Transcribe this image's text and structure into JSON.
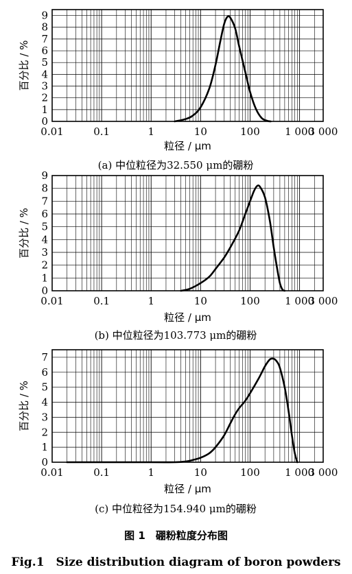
{
  "figure": {
    "caption_cn": "图 1　硼粉粒度分布图",
    "caption_en": "Fig.1　Size distribution diagram of boron powders"
  },
  "chart_data": [
    {
      "type": "line",
      "panel_label": "(a)  中位粒径为32.550 μm的硼粉",
      "xlabel": "粒径 / μm",
      "ylabel": "百分比 / %",
      "xscale": "log",
      "xlim": [
        0.01,
        3000
      ],
      "ylim": [
        0,
        9.5
      ],
      "xticks": [
        0.01,
        0.1,
        1,
        10,
        100,
        1000,
        3000
      ],
      "xtick_labels": [
        "0.01",
        "0.1",
        "1",
        "10",
        "100",
        "1 000",
        "3 000"
      ],
      "yticks": [
        0,
        1,
        2,
        3,
        4,
        5,
        6,
        7,
        8,
        9
      ],
      "grid": true,
      "series": [
        {
          "x": [
            3,
            5,
            7,
            10,
            15,
            20,
            25,
            30,
            35,
            40,
            50,
            60,
            80,
            100,
            130,
            170,
            220,
            260
          ],
          "y": [
            0,
            0.2,
            0.5,
            1.2,
            2.8,
            4.8,
            6.8,
            8.3,
            8.9,
            8.8,
            7.9,
            6.4,
            4.2,
            2.5,
            1.1,
            0.3,
            0.05,
            0
          ]
        }
      ]
    },
    {
      "type": "line",
      "panel_label": "(b)  中位粒径为103.773 μm的硼粉",
      "xlabel": "粒径 / μm",
      "ylabel": "百分比 / %",
      "xscale": "log",
      "xlim": [
        0.01,
        3000
      ],
      "ylim": [
        0,
        9
      ],
      "xticks": [
        0.01,
        0.1,
        1,
        10,
        100,
        1000,
        3000
      ],
      "xtick_labels": [
        "0.01",
        "0.1",
        "1",
        "10",
        "100",
        "1 000",
        "3 000"
      ],
      "yticks": [
        0,
        1,
        2,
        3,
        4,
        5,
        6,
        7,
        8,
        9
      ],
      "grid": true,
      "series": [
        {
          "x": [
            4,
            6,
            10,
            15,
            20,
            30,
            40,
            60,
            80,
            100,
            120,
            140,
            160,
            200,
            250,
            300,
            350,
            400,
            450,
            500
          ],
          "y": [
            0,
            0.15,
            0.6,
            1.1,
            1.7,
            2.6,
            3.4,
            4.7,
            6.0,
            7.0,
            7.8,
            8.2,
            8.1,
            7.3,
            5.5,
            3.4,
            1.8,
            0.6,
            0.1,
            0
          ]
        }
      ]
    },
    {
      "type": "line",
      "panel_label": "(c)  中位粒径为154.940 μm的硼粉",
      "xlabel": "粒径 / μm",
      "ylabel": "百分比 / %",
      "xscale": "log",
      "xlim": [
        0.01,
        3000
      ],
      "ylim": [
        0,
        7.5
      ],
      "xticks": [
        0.01,
        0.1,
        1,
        10,
        100,
        1000,
        3000
      ],
      "xtick_labels": [
        "0.01",
        "0.1",
        "1",
        "10",
        "100",
        "1 000",
        "3 000"
      ],
      "yticks": [
        0,
        1,
        2,
        3,
        4,
        5,
        6,
        7
      ],
      "grid": true,
      "series": [
        {
          "x": [
            0.02,
            1,
            3,
            5,
            7,
            10,
            15,
            20,
            30,
            40,
            50,
            60,
            80,
            100,
            150,
            200,
            250,
            300,
            350,
            400,
            500,
            600,
            700,
            800,
            900
          ],
          "y": [
            0,
            0,
            0,
            0.05,
            0.15,
            0.3,
            0.6,
            1.0,
            1.8,
            2.6,
            3.2,
            3.6,
            4.1,
            4.6,
            5.6,
            6.4,
            6.85,
            6.9,
            6.7,
            6.3,
            5.0,
            3.4,
            1.8,
            0.6,
            0
          ]
        }
      ]
    }
  ]
}
